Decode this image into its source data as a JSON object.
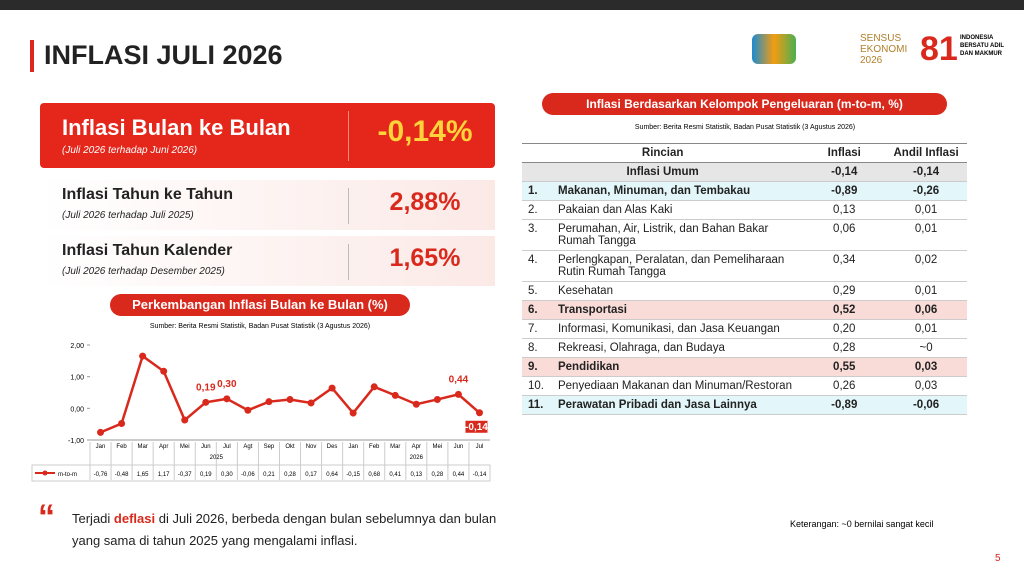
{
  "header": {
    "title": "INFLASI JULI 2026",
    "logo_text": "SENSUS EKONOMI 2026",
    "logo_text2": "INDONESIA BERSATU ADIL DAN MAKMUR",
    "page": "5"
  },
  "cards": [
    {
      "title": "Inflasi Bulan ke Bulan",
      "subtitle": "(Juli 2026 terhadap Juni 2026)",
      "value": "-0,14%"
    },
    {
      "title": "Inflasi Tahun ke Tahun",
      "subtitle": "(Juli 2026 terhadap Juli 2025)",
      "value": "2,88%"
    },
    {
      "title": "Inflasi Tahun Kalender",
      "subtitle": "(Juli 2026 terhadap Desember 2025)",
      "value": "1,65%"
    }
  ],
  "chart_data": {
    "type": "line",
    "title": "Perkembangan Inflasi Bulan ke Bulan (%)",
    "source": "Sumber: Berita Resmi Statistik, Badan Pusat Statistik (3 Agustus 2026)",
    "categories": [
      "Jan",
      "Feb",
      "Mar",
      "Apr",
      "Mei",
      "Jun",
      "Jul",
      "Agt",
      "Sep",
      "Okt",
      "Nov",
      "Des",
      "Jan",
      "Feb",
      "Mar",
      "Apr",
      "Mei",
      "Jun",
      "Jul"
    ],
    "groups": [
      {
        "name": "2025",
        "count": 12
      },
      {
        "name": "2026",
        "count": 7
      }
    ],
    "series": [
      {
        "name": "m-to-m",
        "color": "#d9291c",
        "values": [
          -0.76,
          -0.48,
          1.65,
          1.17,
          -0.37,
          0.19,
          0.3,
          -0.06,
          0.21,
          0.28,
          0.17,
          0.64,
          -0.15,
          0.68,
          0.41,
          0.13,
          0.28,
          0.44,
          -0.14
        ],
        "value_labels": [
          "-0,76",
          "-0,48",
          "1,65",
          "1,17",
          "-0,37",
          "0,19",
          "0,30",
          "-0,06",
          "0,21",
          "0,28",
          "0,17",
          "0,64",
          "-0,15",
          "0,68",
          "0,41",
          "0,13",
          "0,28",
          "0,44",
          "-0,14"
        ],
        "point_labels": [
          null,
          null,
          null,
          null,
          null,
          "0,19",
          "0,30",
          null,
          null,
          null,
          null,
          null,
          null,
          null,
          null,
          null,
          null,
          "0,44",
          "-0,14"
        ]
      }
    ],
    "ylim": [
      -1,
      2
    ],
    "yticks": [
      {
        "value": -1,
        "label": "-1,00"
      },
      {
        "value": 0,
        "label": "0,00"
      },
      {
        "value": 1,
        "label": "1,00"
      },
      {
        "value": 2,
        "label": "2,00"
      }
    ]
  },
  "quote": {
    "before": "Terjadi ",
    "highlight": "deflasi",
    "after": " di Juli 2026, berbeda dengan bulan sebelumnya dan bulan yang sama di tahun 2025 yang mengalami inflasi."
  },
  "table": {
    "title": "Inflasi Berdasarkan Kelompok Pengeluaran (m-to-m, %)",
    "source": "Sumber: Berita Resmi Statistik, Badan Pusat Statistik (3 Agustus 2026)",
    "columns": [
      "Rincian",
      "Inflasi",
      "Andil Inflasi"
    ],
    "summary": [
      "Inflasi Umum",
      "-0,14",
      "-0,14"
    ],
    "rows": [
      [
        "1.",
        "Makanan, Minuman, dan Tembakau",
        "-0,89",
        "-0,26"
      ],
      [
        "2.",
        "Pakaian dan Alas Kaki",
        "0,13",
        "0,01"
      ],
      [
        "3.",
        "Perumahan, Air, Listrik, dan Bahan Bakar Rumah Tangga",
        "0,06",
        "0,01"
      ],
      [
        "4.",
        "Perlengkapan, Peralatan, dan Pemeliharaan Rutin Rumah Tangga",
        "0,34",
        "0,02"
      ],
      [
        "5.",
        "Kesehatan",
        "0,29",
        "0,01"
      ],
      [
        "6.",
        "Transportasi",
        "0,52",
        "0,06"
      ],
      [
        "7.",
        "Informasi, Komunikasi, dan Jasa Keuangan",
        "0,20",
        "0,01"
      ],
      [
        "8.",
        "Rekreasi, Olahraga, dan Budaya",
        "0,28",
        "~0"
      ],
      [
        "9.",
        "Pendidikan",
        "0,55",
        "0,03"
      ],
      [
        "10.",
        "Penyediaan Makanan dan Minuman/Restoran",
        "0,26",
        "0,03"
      ],
      [
        "11.",
        "Perawatan Pribadi dan Jasa Lainnya",
        "-0,89",
        "-0,06"
      ]
    ],
    "note": "Keterangan: ~0 bernilai sangat kecil"
  }
}
